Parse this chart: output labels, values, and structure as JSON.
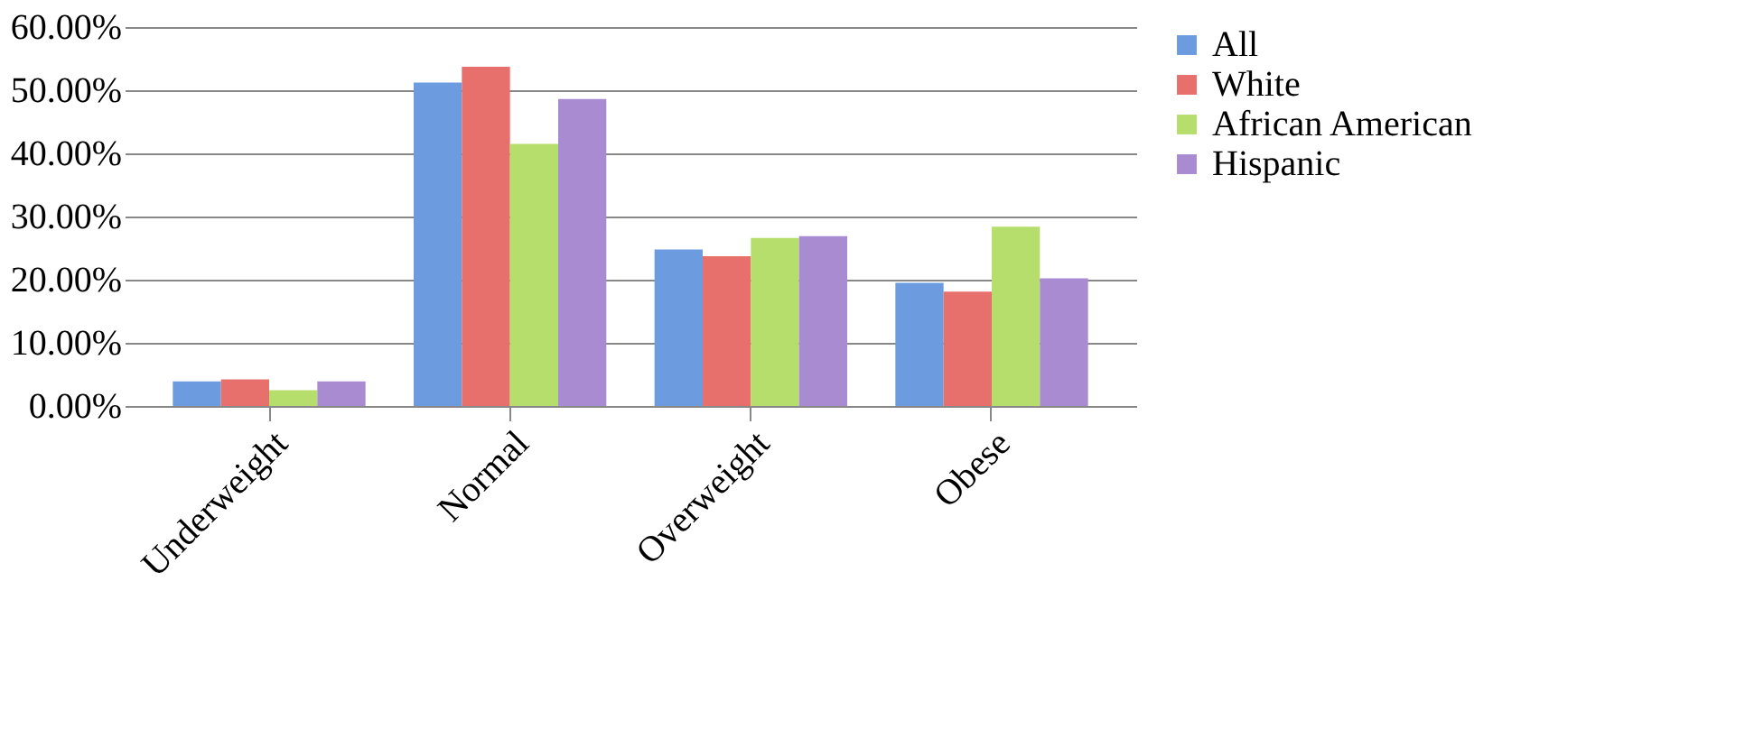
{
  "chart_data": {
    "type": "bar",
    "categories": [
      "Underweight",
      "Normal",
      "Overweight",
      "Obese"
    ],
    "series": [
      {
        "name": "All",
        "color": "#6d9be0",
        "values": [
          3.9,
          51.2,
          24.8,
          19.5
        ]
      },
      {
        "name": "White",
        "color": "#e8706c",
        "values": [
          4.2,
          53.7,
          23.7,
          18.1
        ]
      },
      {
        "name": "African American",
        "color": "#b6de6c",
        "values": [
          2.5,
          41.5,
          26.6,
          28.4
        ]
      },
      {
        "name": "Hispanic",
        "color": "#a98bd2",
        "values": [
          3.9,
          48.6,
          26.9,
          20.2
        ]
      }
    ],
    "ylim": [
      0,
      60
    ],
    "yticks": [
      {
        "value": 0,
        "label": "0.00%"
      },
      {
        "value": 10,
        "label": "10.00%"
      },
      {
        "value": 20,
        "label": "20.00%"
      },
      {
        "value": 30,
        "label": "30.00%"
      },
      {
        "value": 40,
        "label": "40.00%"
      },
      {
        "value": 50,
        "label": "50.00%"
      },
      {
        "value": 60,
        "label": "60.00%"
      }
    ],
    "grid": "y",
    "legend": "right"
  }
}
